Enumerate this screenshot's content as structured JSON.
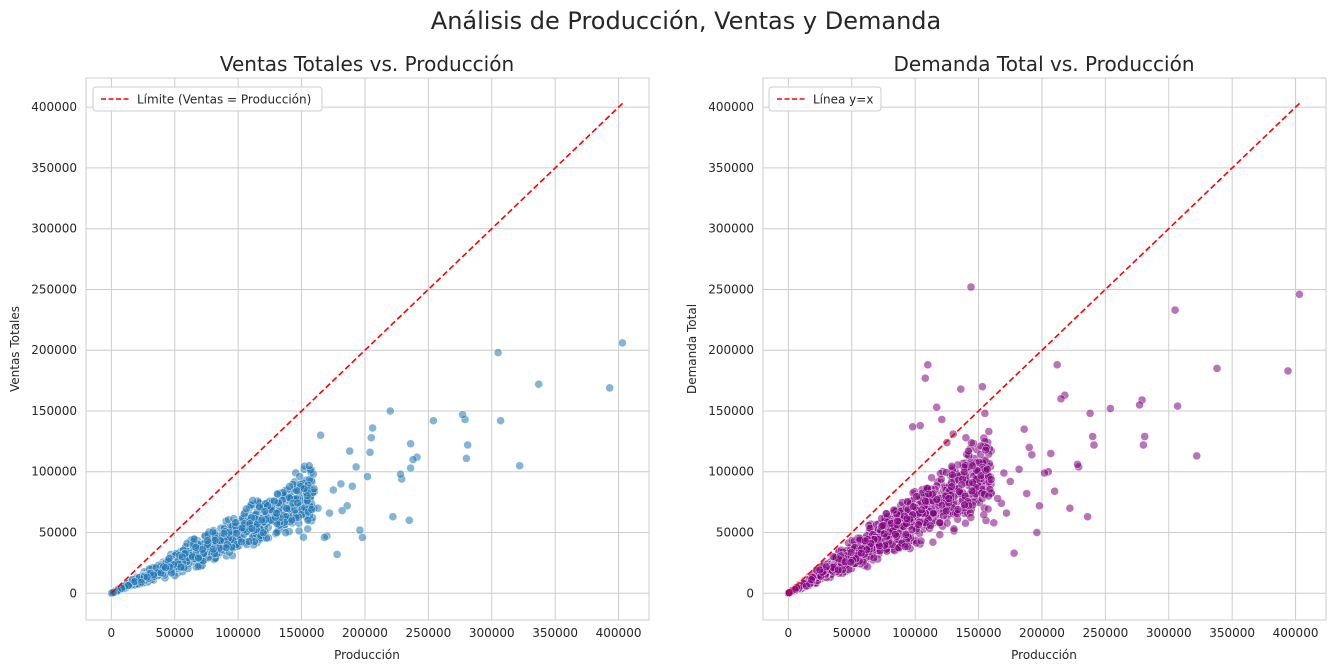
{
  "figure": {
    "suptitle": "Análisis de Producción, Ventas y Demanda"
  },
  "chart_data": [
    {
      "type": "scatter",
      "title": "Ventas Totales vs. Producción",
      "xlabel": "Producción",
      "ylabel": "Ventas Totales",
      "xlim": [
        -20000,
        424000
      ],
      "ylim": [
        -22000,
        424000
      ],
      "xticks": [
        0,
        50000,
        100000,
        150000,
        200000,
        250000,
        300000,
        350000,
        400000
      ],
      "yticks": [
        0,
        50000,
        100000,
        150000,
        200000,
        250000,
        300000,
        350000,
        400000
      ],
      "grid": true,
      "legend_position": "top-left",
      "point_color": "#1f77b4",
      "point_alpha": 0.55,
      "line": {
        "label": "Límite (Ventas = Producción)",
        "color": "#ff0000",
        "style": "dashed",
        "x": [
          0,
          404000
        ],
        "y": [
          0,
          404000
        ]
      },
      "outliers": [
        [
          403000,
          206000
        ],
        [
          393000,
          169000
        ],
        [
          337000,
          172000
        ],
        [
          322000,
          105000
        ],
        [
          307000,
          142000
        ],
        [
          305000,
          198000
        ],
        [
          281000,
          122000
        ],
        [
          280000,
          111000
        ],
        [
          279000,
          143000
        ],
        [
          277000,
          147000
        ],
        [
          254000,
          142000
        ],
        [
          241000,
          112000
        ],
        [
          238000,
          110000
        ],
        [
          236000,
          123000
        ],
        [
          236000,
          103000
        ],
        [
          235000,
          60000
        ],
        [
          229000,
          94000
        ],
        [
          228000,
          98000
        ],
        [
          222000,
          63000
        ],
        [
          220000,
          150000
        ],
        [
          206000,
          136000
        ],
        [
          205000,
          128000
        ],
        [
          204000,
          116000
        ],
        [
          202000,
          96000
        ],
        [
          198000,
          46000
        ],
        [
          196000,
          52000
        ],
        [
          193000,
          104000
        ],
        [
          190000,
          88000
        ],
        [
          188000,
          117000
        ],
        [
          186000,
          72000
        ],
        [
          182000,
          68000
        ],
        [
          181000,
          90000
        ],
        [
          178000,
          32000
        ],
        [
          175000,
          85000
        ],
        [
          172000,
          66000
        ],
        [
          170000,
          47000
        ],
        [
          168000,
          46000
        ],
        [
          165000,
          130000
        ],
        [
          163000,
          70000
        ],
        [
          158000,
          69000
        ],
        [
          156000,
          105000
        ],
        [
          155000,
          60000
        ],
        [
          152000,
          86000
        ]
      ],
      "cluster": {
        "n": 1600,
        "x_max": 160000,
        "ratio_center": 0.5,
        "ratio_spread": 0.22,
        "seed": 7
      }
    },
    {
      "type": "scatter",
      "title": "Demanda Total vs. Producción",
      "xlabel": "Producción",
      "ylabel": "Demanda Total",
      "xlim": [
        -20000,
        424000
      ],
      "ylim": [
        -22000,
        424000
      ],
      "xticks": [
        0,
        50000,
        100000,
        150000,
        200000,
        250000,
        300000,
        350000,
        400000
      ],
      "yticks": [
        0,
        50000,
        100000,
        150000,
        200000,
        250000,
        300000,
        350000,
        400000
      ],
      "grid": true,
      "legend_position": "top-left",
      "point_color": "#800080",
      "point_alpha": 0.55,
      "line": {
        "label": "Línea y=x",
        "color": "#ff0000",
        "style": "dashed",
        "x": [
          0,
          404000
        ],
        "y": [
          0,
          404000
        ]
      },
      "outliers": [
        [
          403000,
          246000
        ],
        [
          394000,
          183000
        ],
        [
          338000,
          185000
        ],
        [
          322000,
          113000
        ],
        [
          307000,
          154000
        ],
        [
          305000,
          233000
        ],
        [
          281000,
          129000
        ],
        [
          280000,
          122000
        ],
        [
          279000,
          159000
        ],
        [
          277000,
          155000
        ],
        [
          254000,
          152000
        ],
        [
          241000,
          122000
        ],
        [
          240000,
          129000
        ],
        [
          238000,
          148000
        ],
        [
          236000,
          63000
        ],
        [
          229000,
          104000
        ],
        [
          228000,
          106000
        ],
        [
          222000,
          70000
        ],
        [
          218000,
          163000
        ],
        [
          215000,
          160000
        ],
        [
          212000,
          188000
        ],
        [
          210000,
          84000
        ],
        [
          207000,
          115000
        ],
        [
          205000,
          100000
        ],
        [
          202000,
          99000
        ],
        [
          198000,
          72000
        ],
        [
          196000,
          50000
        ],
        [
          192000,
          114000
        ],
        [
          190000,
          120000
        ],
        [
          188000,
          82000
        ],
        [
          186000,
          135000
        ],
        [
          182000,
          102000
        ],
        [
          178000,
          33000
        ],
        [
          175000,
          92000
        ],
        [
          172000,
          66000
        ],
        [
          170000,
          99000
        ],
        [
          168000,
          74000
        ],
        [
          165000,
          78000
        ],
        [
          162000,
          58000
        ],
        [
          158000,
          80000
        ],
        [
          157000,
          102000
        ],
        [
          155000,
          148000
        ],
        [
          153000,
          170000
        ],
        [
          144000,
          252000
        ],
        [
          142000,
          117000
        ],
        [
          140000,
          128000
        ],
        [
          136000,
          168000
        ],
        [
          130000,
          131000
        ],
        [
          125000,
          124000
        ],
        [
          121000,
          143000
        ],
        [
          117000,
          153000
        ],
        [
          110000,
          188000
        ],
        [
          108000,
          177000
        ],
        [
          104000,
          138000
        ],
        [
          98000,
          137000
        ]
      ],
      "cluster": {
        "n": 1600,
        "x_max": 160000,
        "ratio_center": 0.62,
        "ratio_spread": 0.3,
        "seed": 11
      }
    }
  ]
}
